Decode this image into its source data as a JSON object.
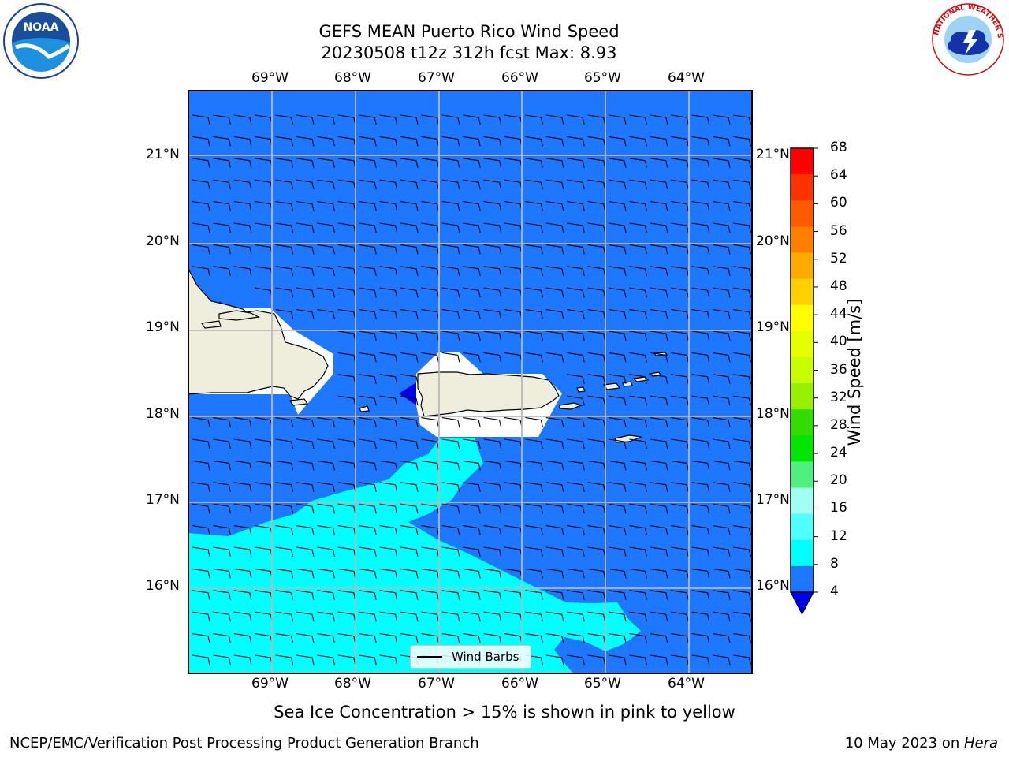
{
  "header": {
    "title_line1": "GEFS MEAN Puerto Rico Wind Speed",
    "title_line2": "20230508 t12z 312h fcst   Max: 8.93"
  },
  "logos": {
    "left": "noaa-logo",
    "left_text": "NOAA",
    "right": "national-weather-service-logo",
    "right_text": "NATIONAL WEATHER SERVICE"
  },
  "map": {
    "lon_labels": [
      "69°W",
      "68°W",
      "67°W",
      "66°W",
      "65°W",
      "64°W"
    ],
    "lat_labels": [
      "21°N",
      "20°N",
      "19°N",
      "18°N",
      "17°N",
      "16°N"
    ],
    "legend_label": "Wind Barbs",
    "colors": {
      "ocean": "#1e78ff",
      "cyan_band": "#00ffff",
      "land": "#efeddc",
      "low_speed": "#0000e6"
    }
  },
  "colorbar": {
    "label": "Wind Speed [m/s]",
    "ticks": [
      "68",
      "64",
      "60",
      "56",
      "52",
      "48",
      "44",
      "40",
      "36",
      "32",
      "28",
      "24",
      "20",
      "16",
      "12",
      "8",
      "4"
    ],
    "colors": [
      "#ff0000",
      "#ff3300",
      "#ff5a00",
      "#ff8000",
      "#ffaa00",
      "#ffd000",
      "#ffff00",
      "#e6ff00",
      "#c8ff00",
      "#96f000",
      "#32dc00",
      "#00e600",
      "#50f080",
      "#a0fff0",
      "#50ffff",
      "#00ffff",
      "#1e78ff"
    ],
    "under_color": "#0000e6"
  },
  "subtitle": "Sea Ice Concentration > 15% is shown in pink to yellow",
  "footer": {
    "left": "NCEP/EMC/Verification Post Processing Product Generation Branch",
    "right_date": "10 May 2023 on ",
    "right_host": "Hera"
  }
}
